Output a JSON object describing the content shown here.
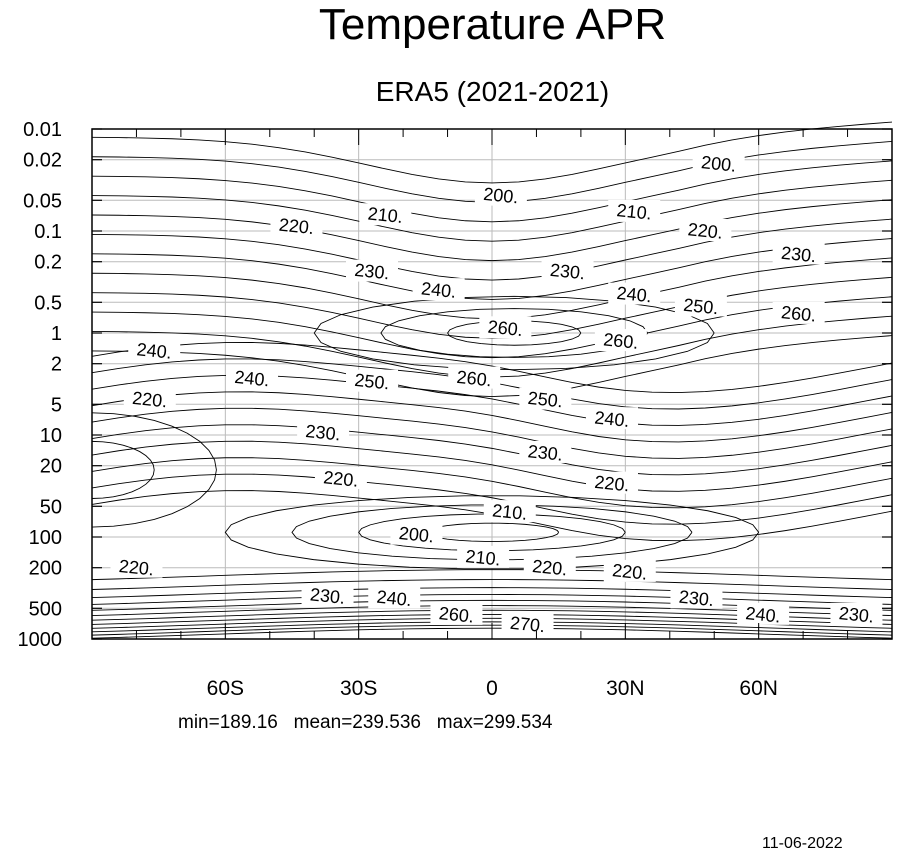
{
  "chart_data": {
    "type": "contour",
    "title": "Temperature APR",
    "subtitle": "ERA5 (2021-2021)",
    "xlabel": "",
    "ylabel": "",
    "x_ticks": [
      {
        "value": -60,
        "label": "60S"
      },
      {
        "value": -30,
        "label": "30S"
      },
      {
        "value": 0,
        "label": "0"
      },
      {
        "value": 30,
        "label": "30N"
      },
      {
        "value": 60,
        "label": "60N"
      }
    ],
    "y_ticks": [
      "0.01",
      "0.02",
      "0.05",
      "0.1",
      "0.2",
      "0.5",
      "1",
      "2",
      "5",
      "10",
      "20",
      "50",
      "100",
      "200",
      "500",
      "1000"
    ],
    "xlim": [
      -90,
      90
    ],
    "ylim": [
      1000,
      0.01
    ],
    "y_scale": "log",
    "grid": true,
    "contour_interval": 10,
    "contour_labels": [
      {
        "x": -44,
        "y": 0.09,
        "value": "220."
      },
      {
        "x": -24,
        "y": 0.07,
        "value": "210."
      },
      {
        "x": 2,
        "y": 0.045,
        "value": "200."
      },
      {
        "x": 32,
        "y": 0.065,
        "value": "210."
      },
      {
        "x": 51,
        "y": 0.022,
        "value": "200."
      },
      {
        "x": 48,
        "y": 0.1,
        "value": "220."
      },
      {
        "x": 69,
        "y": 0.17,
        "value": "230."
      },
      {
        "x": -27,
        "y": 0.25,
        "value": "230."
      },
      {
        "x": 17,
        "y": 0.25,
        "value": "230."
      },
      {
        "x": -12,
        "y": 0.38,
        "value": "240."
      },
      {
        "x": 32,
        "y": 0.42,
        "value": "240."
      },
      {
        "x": 47,
        "y": 0.55,
        "value": "250."
      },
      {
        "x": 69,
        "y": 0.65,
        "value": "260."
      },
      {
        "x": 3,
        "y": 0.9,
        "value": "260."
      },
      {
        "x": 29,
        "y": 1.2,
        "value": "260."
      },
      {
        "x": -76,
        "y": 1.5,
        "value": "240."
      },
      {
        "x": -54,
        "y": 2.8,
        "value": "240."
      },
      {
        "x": -27,
        "y": 3.0,
        "value": "250."
      },
      {
        "x": -4,
        "y": 2.8,
        "value": "260."
      },
      {
        "x": 12,
        "y": 4.5,
        "value": "250."
      },
      {
        "x": -77,
        "y": 4.5,
        "value": "220."
      },
      {
        "x": 27,
        "y": 7.0,
        "value": "240."
      },
      {
        "x": -38,
        "y": 9.5,
        "value": "230."
      },
      {
        "x": 12,
        "y": 15.0,
        "value": "230."
      },
      {
        "x": -34,
        "y": 27.0,
        "value": "220."
      },
      {
        "x": 27,
        "y": 30.0,
        "value": "220."
      },
      {
        "x": 4,
        "y": 57.0,
        "value": "210."
      },
      {
        "x": -17,
        "y": 95.0,
        "value": "200."
      },
      {
        "x": -2,
        "y": 160.0,
        "value": "210."
      },
      {
        "x": 13,
        "y": 200.0,
        "value": "220."
      },
      {
        "x": 31,
        "y": 220.0,
        "value": "220."
      },
      {
        "x": -80,
        "y": 200.0,
        "value": "220."
      },
      {
        "x": -37,
        "y": 380.0,
        "value": "230."
      },
      {
        "x": -22,
        "y": 400.0,
        "value": "240."
      },
      {
        "x": -8,
        "y": 580.0,
        "value": "260."
      },
      {
        "x": 8,
        "y": 720.0,
        "value": "270."
      },
      {
        "x": 46,
        "y": 400.0,
        "value": "230."
      },
      {
        "x": 61,
        "y": 580.0,
        "value": "240."
      },
      {
        "x": 82,
        "y": 580.0,
        "value": "230."
      }
    ]
  },
  "stats_text": "min=189.16   mean=239.536   max=299.534",
  "date": "11-06-2022",
  "colors": {
    "line": "#000000",
    "grid": "#bbbbbb",
    "background": "#ffffff"
  }
}
